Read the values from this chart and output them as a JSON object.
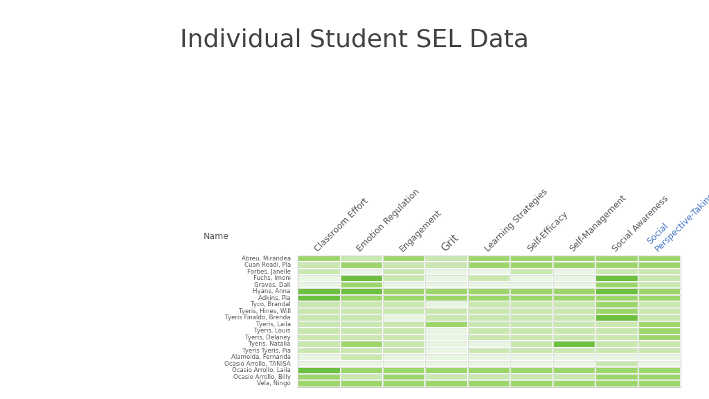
{
  "title": "Individual Student SEL Data",
  "title_fontsize": 26,
  "name_label": "Name",
  "columns": [
    "Classroom Effort",
    "Emotion Regulation",
    "Engagement",
    "Grit",
    "Learning Strategies",
    "Self-Efficacy",
    "Self-Management",
    "Social Awareness",
    "Social\nPerspective-Taking"
  ],
  "col_fontsizes": [
    9,
    9,
    9,
    11,
    9,
    9,
    9,
    9,
    9
  ],
  "last_col_color": "#4472C4",
  "rows": [
    "Abreu, Mirandea",
    "Cuan Readi, Pla",
    "Forbes, Janelle",
    "Fuchs, Imoni",
    "Graves, Dali",
    "Hyans, Anna",
    "Adkins, Pia",
    "Tyco, Brandal",
    "Tyeris, Hines, Will",
    "Tyeris Finaldo, Brenda",
    "Tyeris, Laila",
    "Tyeris, Louis",
    "Tyeris, Delaney",
    "Tyeris, Natalia",
    "Tyeris Tyeris, Pia",
    "Alameida, Fernanda",
    "Ocasio Arrollo, TANISA",
    "Ocasio Arrollo, Laila",
    "Ocasio Arrollo, Billy",
    "Vela, Ningo"
  ],
  "data": [
    [
      3,
      2,
      3,
      2,
      3,
      3,
      3,
      3,
      3
    ],
    [
      2,
      3,
      2,
      2,
      3,
      3,
      3,
      3,
      3
    ],
    [
      2,
      1,
      2,
      1,
      1,
      2,
      1,
      2,
      2
    ],
    [
      1,
      4,
      2,
      1,
      2,
      1,
      1,
      4,
      2
    ],
    [
      1,
      3,
      1,
      1,
      1,
      1,
      1,
      3,
      2
    ],
    [
      4,
      4,
      3,
      3,
      3,
      3,
      3,
      4,
      3
    ],
    [
      4,
      3,
      3,
      3,
      3,
      3,
      3,
      3,
      3
    ],
    [
      2,
      2,
      2,
      1,
      2,
      2,
      2,
      3,
      2
    ],
    [
      2,
      2,
      2,
      2,
      2,
      2,
      2,
      3,
      2
    ],
    [
      2,
      2,
      1,
      2,
      2,
      2,
      2,
      4,
      2
    ],
    [
      2,
      2,
      2,
      3,
      2,
      2,
      2,
      2,
      3
    ],
    [
      2,
      2,
      2,
      1,
      2,
      2,
      2,
      2,
      3
    ],
    [
      2,
      2,
      2,
      1,
      2,
      2,
      2,
      2,
      3
    ],
    [
      2,
      3,
      2,
      1,
      1,
      2,
      4,
      2,
      2
    ],
    [
      2,
      2,
      2,
      1,
      2,
      2,
      2,
      2,
      2
    ],
    [
      1,
      2,
      1,
      1,
      1,
      1,
      1,
      1,
      1
    ],
    [
      1,
      1,
      1,
      1,
      1,
      1,
      1,
      2,
      1
    ],
    [
      4,
      3,
      3,
      3,
      3,
      3,
      3,
      3,
      3
    ],
    [
      3,
      2,
      3,
      2,
      2,
      2,
      2,
      3,
      3
    ],
    [
      3,
      3,
      3,
      3,
      3,
      3,
      3,
      3,
      3
    ]
  ],
  "vmin": 0,
  "vmax": 4,
  "cmap_colors": [
    "#f5f5f5",
    "#e8f5e2",
    "#c8e8b0",
    "#9dd66b",
    "#6cbf3f"
  ],
  "background_color": "#ffffff",
  "grid_color": "#ffffff",
  "text_color": "#555555",
  "border_color": "#cccccc"
}
